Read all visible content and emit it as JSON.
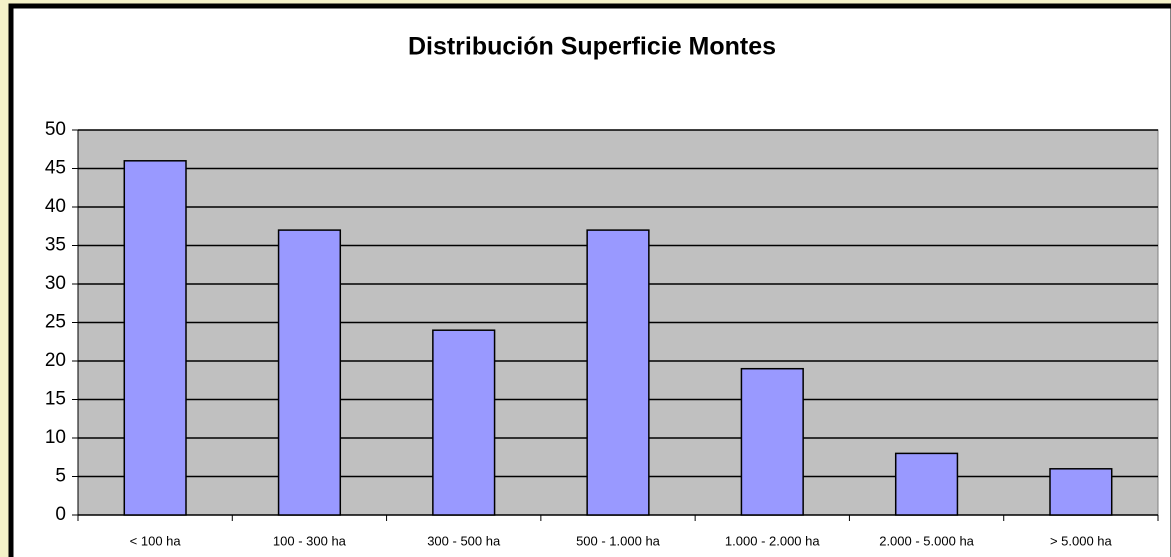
{
  "chart_data": {
    "type": "bar",
    "title": "Distribución Superficie Montes",
    "categories": [
      "< 100 ha",
      "100 - 300 ha",
      "300 - 500 ha",
      "500 - 1.000 ha",
      "1.000 - 2.000 ha",
      "2.000 - 5.000 ha",
      "> 5.000 ha"
    ],
    "values": [
      46,
      37,
      24,
      37,
      19,
      8,
      6
    ],
    "color": "#9999ff",
    "ylim": [
      0,
      50
    ],
    "yticks": [
      0,
      5,
      10,
      15,
      20,
      25,
      30,
      35,
      40,
      45,
      50
    ],
    "grid": true
  }
}
